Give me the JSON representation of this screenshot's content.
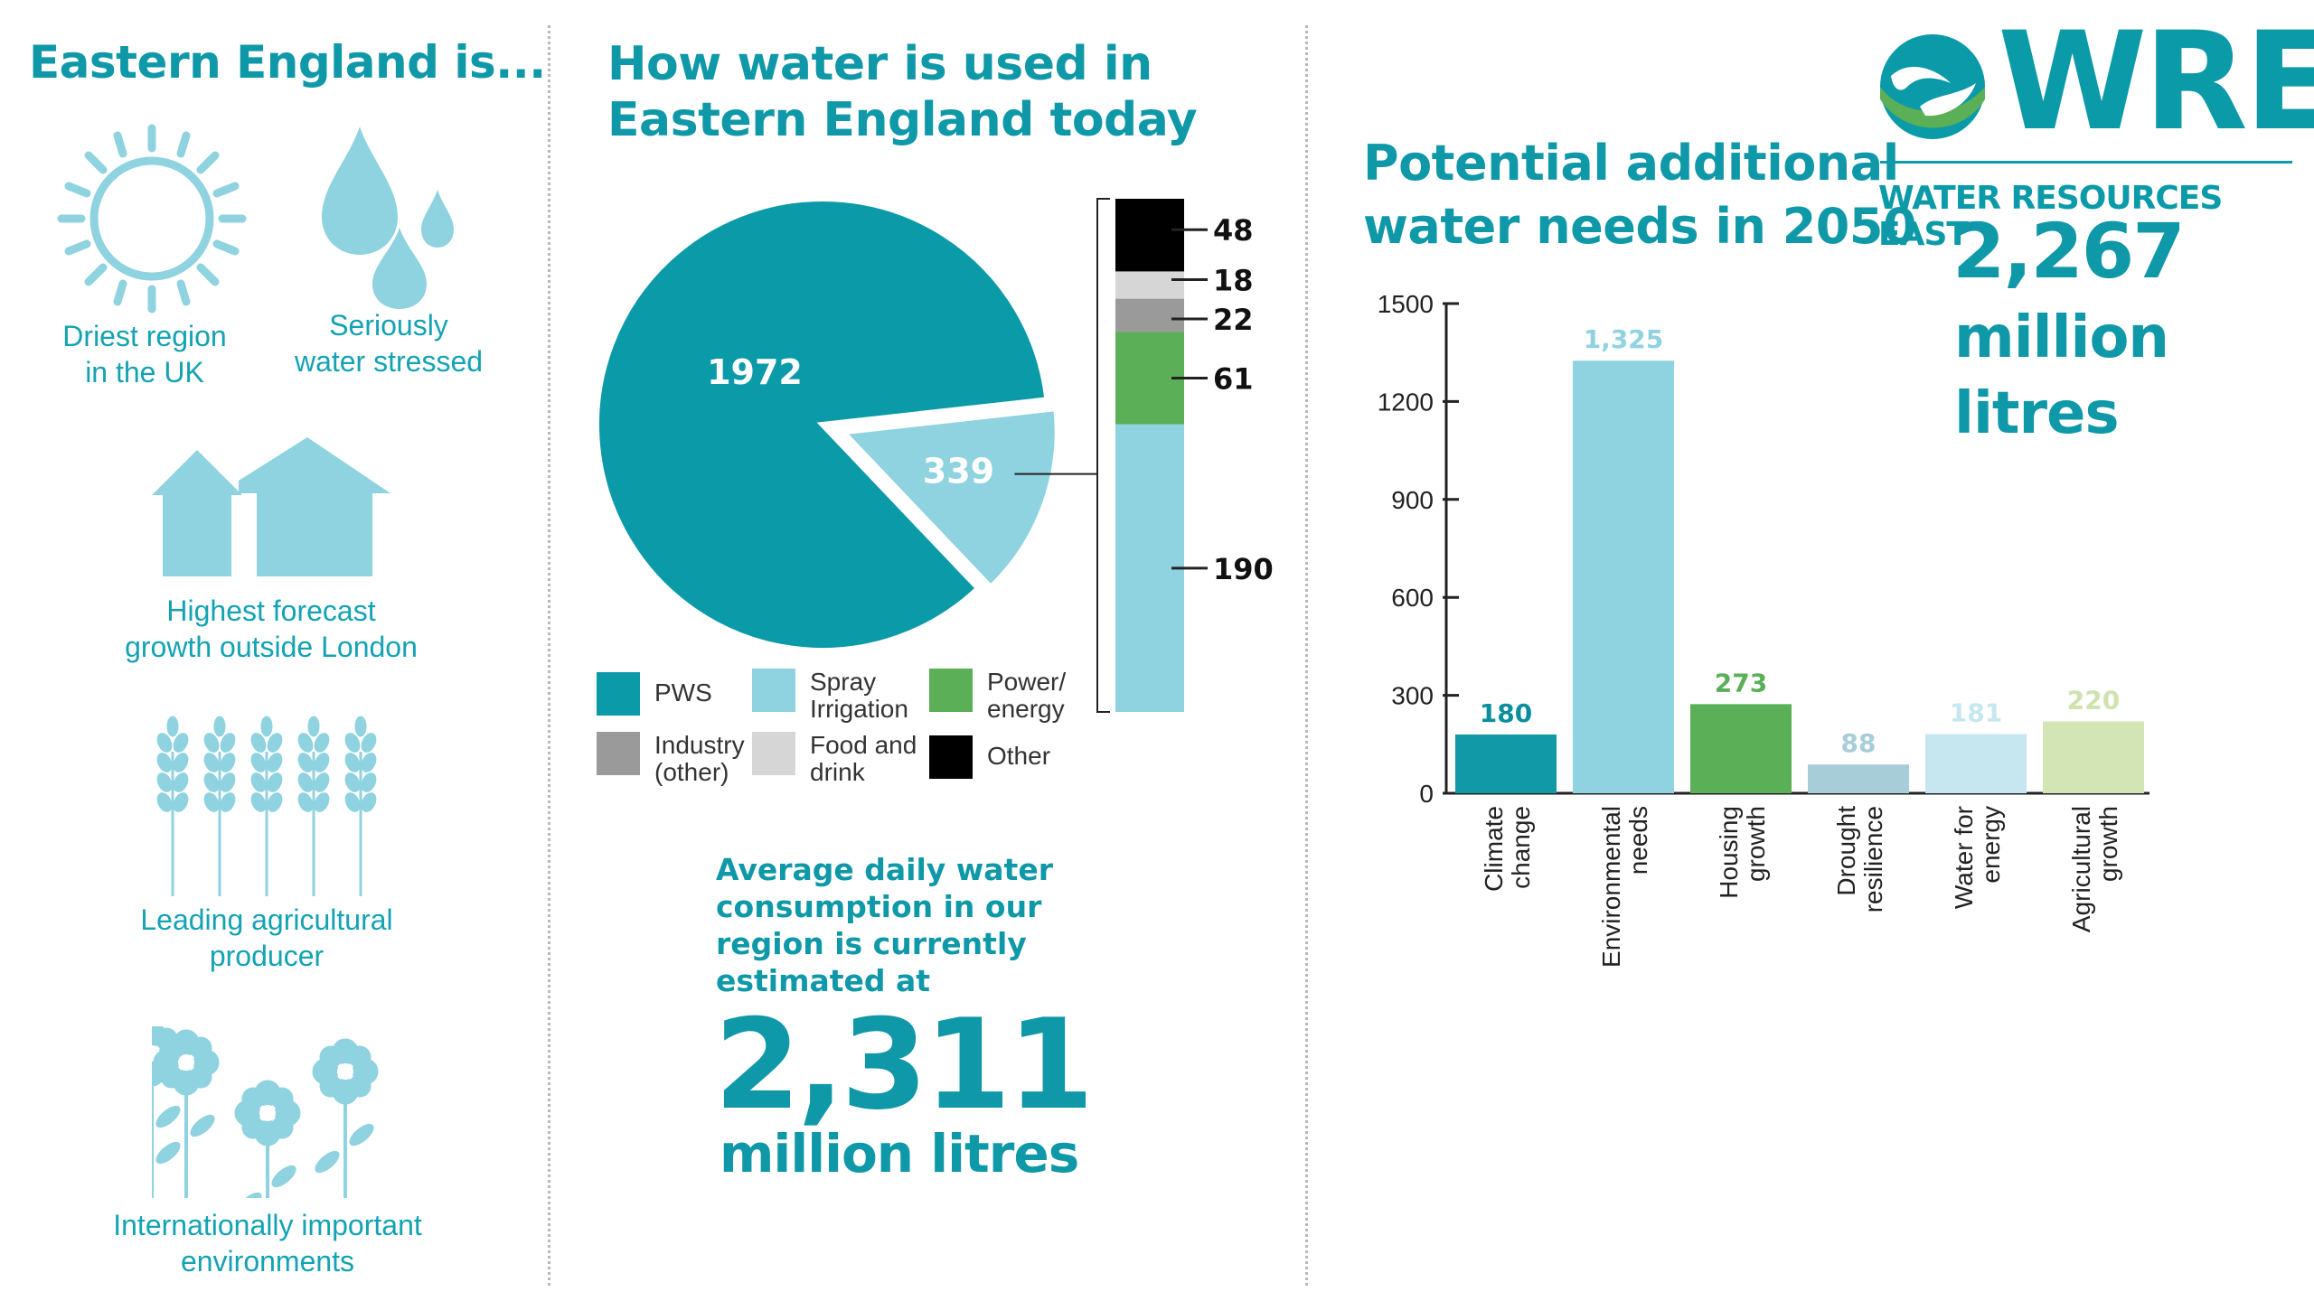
{
  "left": {
    "title": "Eastern England is...",
    "facts": [
      {
        "icon": "sun-icon",
        "label": [
          "Driest region",
          "in the UK"
        ]
      },
      {
        "icon": "water-drops-icon",
        "label": [
          "Seriously",
          "water stressed"
        ]
      },
      {
        "icon": "houses-icon",
        "label": [
          "Highest forecast",
          "growth outside London"
        ]
      },
      {
        "icon": "wheat-icon",
        "label": [
          "Leading agricultural",
          "producer"
        ]
      },
      {
        "icon": "flowers-icon",
        "label": [
          "Internationally important",
          "environments"
        ]
      }
    ]
  },
  "middle": {
    "title_lines": [
      "How water is used in",
      "Eastern England today"
    ],
    "avg_text_lines": [
      "Average daily water",
      "consumption in our",
      "region is currently",
      "estimated at"
    ],
    "avg_value": "2,311",
    "avg_unit": "million litres"
  },
  "right": {
    "title_lines": [
      "Potential additional",
      "water needs in 2050"
    ],
    "total_value": "2,267",
    "total_unit_lines": [
      "million",
      "litres"
    ]
  },
  "logo": {
    "text": "WRE",
    "subtitle": "WATER RESOURCES EAST",
    "icon": "hands-water-logo-icon"
  },
  "colors": {
    "teal": "#0a9aa8",
    "light_blue": "#8fd2e0",
    "green": "#5aaf57"
  },
  "chart_data": [
    {
      "type": "pie",
      "slices": [
        {
          "name": "PWS",
          "value": 1972,
          "color": "#0a9aa8"
        },
        {
          "name": "Spray Irrigation",
          "value": 339,
          "color": "#8fd2e0"
        }
      ],
      "breakdown_of": "339",
      "stack": [
        {
          "value": 190,
          "color": "#8fd2e0"
        },
        {
          "value": 61,
          "color": "#5aaf57"
        },
        {
          "value": 22,
          "color": "#9a9a9a"
        },
        {
          "value": 18,
          "color": "#d6d6d6"
        },
        {
          "value": 48,
          "color": "#000000"
        }
      ],
      "legend": [
        {
          "label": [
            "PWS"
          ],
          "color": "#0a9aa8"
        },
        {
          "label": [
            "Spray",
            "Irrigation"
          ],
          "color": "#8fd2e0"
        },
        {
          "label": [
            "Power/",
            "energy"
          ],
          "color": "#5aaf57"
        },
        {
          "label": [
            "Industry",
            "(other)"
          ],
          "color": "#9a9a9a"
        },
        {
          "label": [
            "Food and",
            "drink"
          ],
          "color": "#d6d6d6"
        },
        {
          "label": [
            "Other"
          ],
          "color": "#000000"
        }
      ]
    },
    {
      "type": "bar",
      "categories": [
        [
          "Climate",
          "change"
        ],
        [
          "Environmental",
          "needs"
        ],
        [
          "Housing",
          "growth"
        ],
        [
          "Drought",
          "resilience"
        ],
        [
          "Water for",
          "energy"
        ],
        [
          "Agricultural",
          "growth"
        ]
      ],
      "values": [
        180,
        1325,
        273,
        88,
        181,
        220
      ],
      "value_labels": [
        "180",
        "1,325",
        "273",
        "88",
        "181",
        "220"
      ],
      "colors": [
        "#1199a8",
        "#8fd2e0",
        "#5aaf57",
        "#a7ced8",
        "#c6e7f0",
        "#d3e5b4"
      ],
      "label_colors": [
        "#0a8e9c",
        "#8fd2e0",
        "#5aaf57",
        "#a7ced8",
        "#c6e7f0",
        "#cfe3ae"
      ],
      "yticks": [
        0,
        300,
        600,
        900,
        1200,
        1500
      ],
      "ylim": [
        0,
        1500
      ],
      "grid": false
    }
  ]
}
